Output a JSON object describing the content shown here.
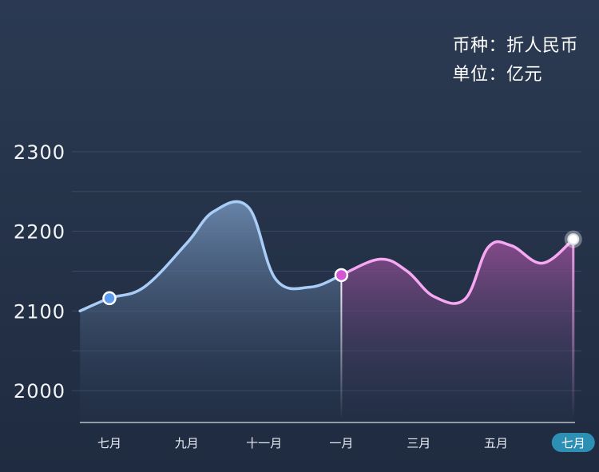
{
  "legend": {
    "currency_label": "币种：折人民币",
    "unit_label": "单位：亿元"
  },
  "colors": {
    "background_top": "#2b3a52",
    "background_bottom": "#1f2b40",
    "grid": "#3a4a62",
    "axis": "#b8c0cc",
    "series1_line": "#a9cdf7",
    "series1_fill": "#6b88ad",
    "series2_line": "#f7a8f2",
    "series2_fill": "#8a4b8e",
    "marker_blue": "#5b9bf0",
    "marker_pink": "#d456d4",
    "marker_white": "#ffffff",
    "active_pill": "#2e8fb5"
  },
  "chart_data": {
    "type": "area",
    "x_categories": [
      "七月",
      "九月",
      "十一月",
      "一月",
      "三月",
      "五月",
      "七月"
    ],
    "active_x_index": 6,
    "ylim": [
      1960,
      2340
    ],
    "y_ticks": [
      2000,
      2100,
      2200,
      2300
    ],
    "grid": true,
    "series": [
      {
        "line_color": "#a9cdf7",
        "points": [
          [
            -0.38,
            2100
          ],
          [
            0.0,
            2116
          ],
          [
            0.45,
            2130
          ],
          [
            1.0,
            2185
          ],
          [
            1.35,
            2225
          ],
          [
            1.8,
            2230
          ],
          [
            2.15,
            2140
          ],
          [
            2.6,
            2130
          ],
          [
            3.0,
            2145
          ]
        ],
        "marker": {
          "x": 0.0,
          "y": 2116,
          "color": "#5b9bf0"
        }
      },
      {
        "line_color": "#f7a8f2",
        "points": [
          [
            3.0,
            2145
          ],
          [
            3.5,
            2165
          ],
          [
            3.85,
            2150
          ],
          [
            4.2,
            2118
          ],
          [
            4.6,
            2115
          ],
          [
            4.9,
            2180
          ],
          [
            5.2,
            2182
          ],
          [
            5.6,
            2160
          ],
          [
            6.0,
            2190
          ]
        ],
        "marker": {
          "x": 3.0,
          "y": 2145,
          "color": "#d456d4"
        },
        "end_marker": {
          "x": 6.0,
          "y": 2190,
          "color": "#ffffff"
        }
      }
    ]
  }
}
